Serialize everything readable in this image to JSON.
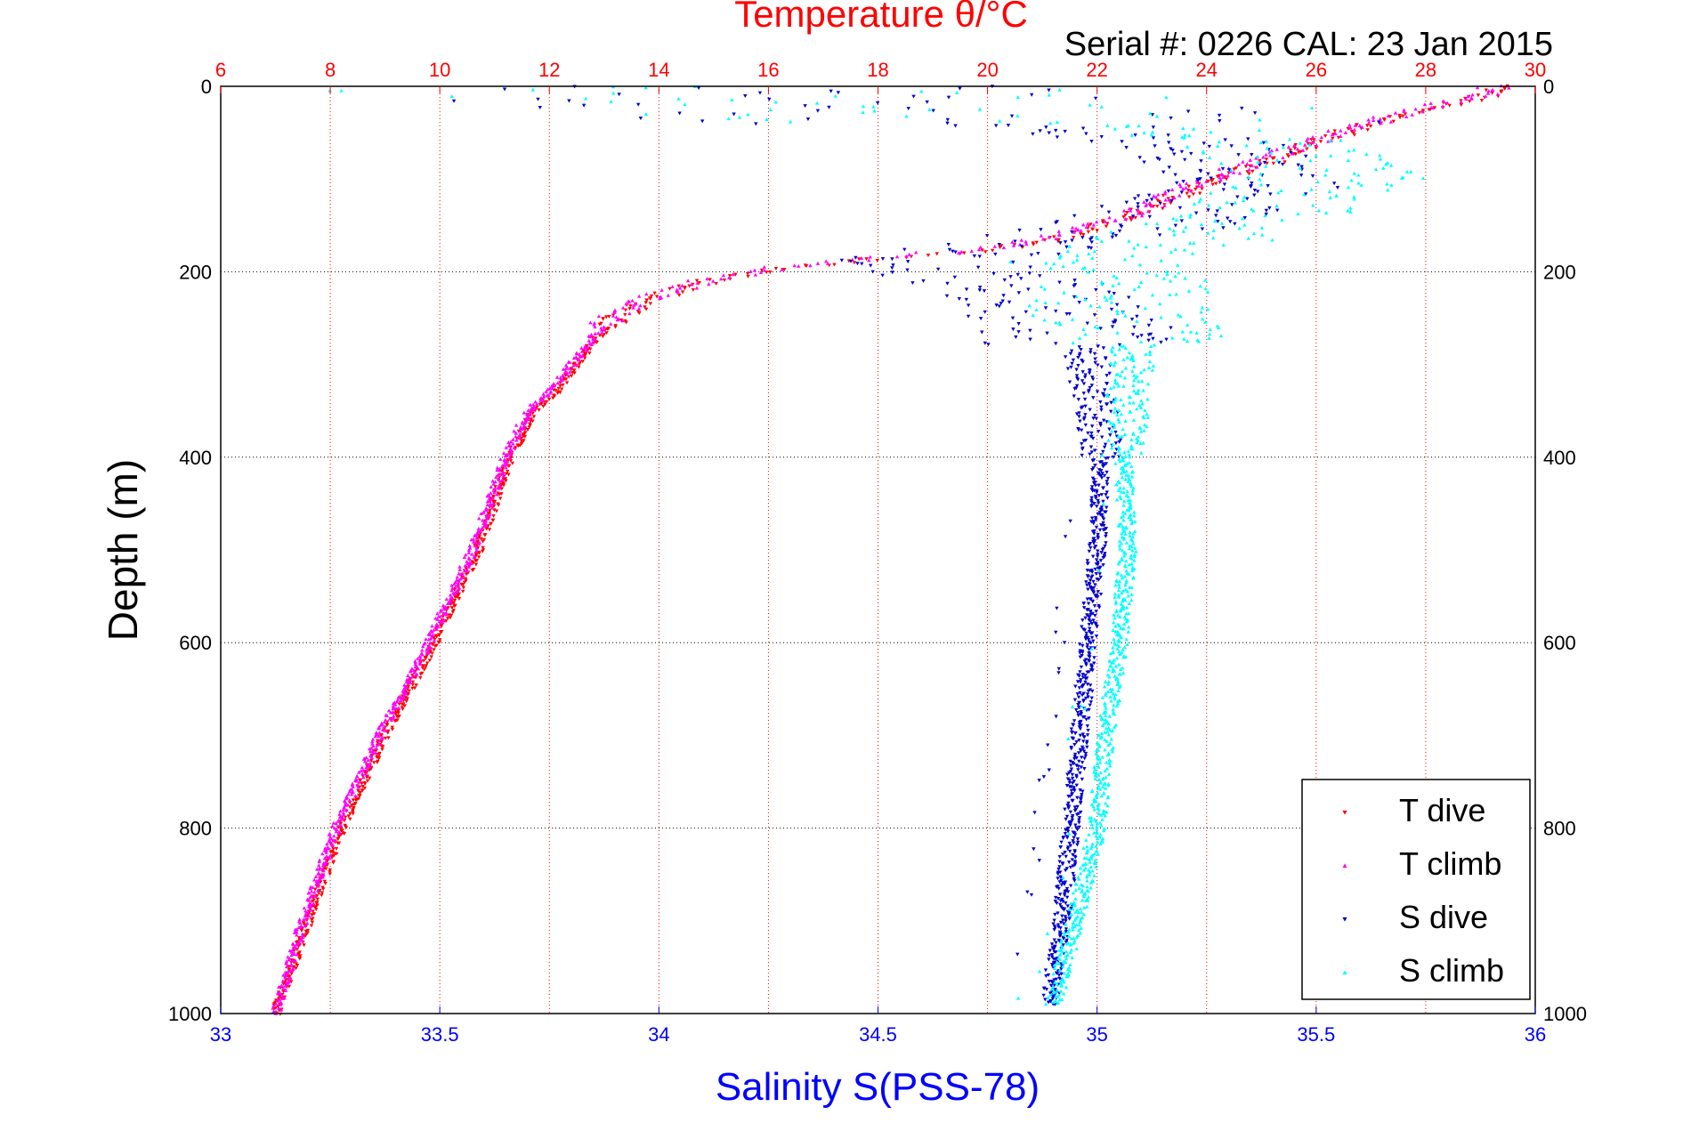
{
  "header": {
    "top_title": "Temperature θ/°C",
    "serial_label": "Serial #: 0226  CAL: 23 Jan 2015"
  },
  "colors": {
    "temperature_axis": "#ff0000",
    "salinity_axis": "#0000ff",
    "frame": "#000000",
    "t_dive": "#ff0000",
    "t_climb": "#ff00ff",
    "s_dive": "#0000cc",
    "s_climb": "#00ffff"
  },
  "chart_data": {
    "type": "scatter",
    "ylabel": "Depth (m)",
    "xlabel": "Salinity S(PSS-78)",
    "x2label": "Temperature θ/°C",
    "ylim": [
      0,
      1000
    ],
    "y_reversed": true,
    "xlim": [
      33,
      36
    ],
    "x2lim": [
      6,
      30
    ],
    "y_ticks": [
      "0",
      "200",
      "400",
      "600",
      "800",
      "1000"
    ],
    "x_ticks": [
      "33",
      "33.5",
      "34",
      "34.5",
      "35",
      "35.5",
      "36"
    ],
    "x2_ticks": [
      "6",
      "8",
      "10",
      "12",
      "14",
      "16",
      "18",
      "20",
      "22",
      "24",
      "26",
      "28",
      "30"
    ],
    "grid": true,
    "legend_position": "bottom-right",
    "series": [
      {
        "name": "T dive",
        "axis": "temperature",
        "marker": "triangle-down",
        "color": "#ff0000",
        "profile": [
          [
            0,
            29.4
          ],
          [
            10,
            29.1
          ],
          [
            25,
            28.0
          ],
          [
            50,
            26.5
          ],
          [
            80,
            25.2
          ],
          [
            110,
            23.8
          ],
          [
            140,
            22.6
          ],
          [
            160,
            21.6
          ],
          [
            175,
            20.3
          ],
          [
            185,
            18.2
          ],
          [
            195,
            16.5
          ],
          [
            210,
            15.0
          ],
          [
            230,
            13.8
          ],
          [
            250,
            13.2
          ],
          [
            270,
            12.9
          ],
          [
            300,
            12.5
          ],
          [
            330,
            12.1
          ],
          [
            350,
            11.7
          ],
          [
            400,
            11.3
          ],
          [
            450,
            11.0
          ],
          [
            500,
            10.7
          ],
          [
            550,
            10.3
          ],
          [
            600,
            9.9
          ],
          [
            700,
            9.0
          ],
          [
            800,
            8.2
          ],
          [
            900,
            7.6
          ],
          [
            1000,
            7.0
          ]
        ]
      },
      {
        "name": "T climb",
        "axis": "temperature",
        "marker": "triangle-up",
        "color": "#ff00ff",
        "profile": [
          [
            0,
            29.3
          ],
          [
            10,
            29.0
          ],
          [
            25,
            27.8
          ],
          [
            50,
            26.4
          ],
          [
            80,
            25.0
          ],
          [
            110,
            23.6
          ],
          [
            140,
            22.5
          ],
          [
            160,
            21.4
          ],
          [
            175,
            20.0
          ],
          [
            185,
            18.0
          ],
          [
            195,
            16.3
          ],
          [
            210,
            14.8
          ],
          [
            230,
            13.7
          ],
          [
            250,
            13.1
          ],
          [
            270,
            12.8
          ],
          [
            300,
            12.4
          ],
          [
            330,
            12.0
          ],
          [
            350,
            11.6
          ],
          [
            400,
            11.2
          ],
          [
            450,
            10.9
          ],
          [
            500,
            10.6
          ],
          [
            550,
            10.2
          ],
          [
            600,
            9.8
          ],
          [
            700,
            8.9
          ],
          [
            800,
            8.1
          ],
          [
            900,
            7.5
          ],
          [
            1000,
            7.0
          ]
        ]
      },
      {
        "name": "S dive",
        "axis": "salinity",
        "marker": "triangle-down",
        "color": "#0000cc",
        "profile": [
          [
            0,
            33.9
          ],
          [
            20,
            34.5
          ],
          [
            60,
            35.2
          ],
          [
            100,
            35.4
          ],
          [
            150,
            35.1
          ],
          [
            190,
            34.6
          ],
          [
            220,
            34.85
          ],
          [
            260,
            34.95
          ],
          [
            300,
            34.98
          ],
          [
            350,
            35.0
          ],
          [
            400,
            35.01
          ],
          [
            500,
            35.0
          ],
          [
            600,
            34.98
          ],
          [
            700,
            34.96
          ],
          [
            800,
            34.94
          ],
          [
            900,
            34.92
          ],
          [
            990,
            34.89
          ]
        ]
      },
      {
        "name": "S climb",
        "axis": "salinity",
        "marker": "triangle-up",
        "color": "#00ffff",
        "profile": [
          [
            0,
            33.9
          ],
          [
            20,
            34.7
          ],
          [
            60,
            35.4
          ],
          [
            100,
            35.55
          ],
          [
            150,
            35.3
          ],
          [
            190,
            35.0
          ],
          [
            220,
            35.05
          ],
          [
            260,
            35.07
          ],
          [
            300,
            35.08
          ],
          [
            350,
            35.07
          ],
          [
            400,
            35.06
          ],
          [
            500,
            35.07
          ],
          [
            600,
            35.05
          ],
          [
            700,
            35.02
          ],
          [
            800,
            35.0
          ],
          [
            900,
            34.95
          ],
          [
            990,
            34.9
          ]
        ]
      }
    ]
  }
}
